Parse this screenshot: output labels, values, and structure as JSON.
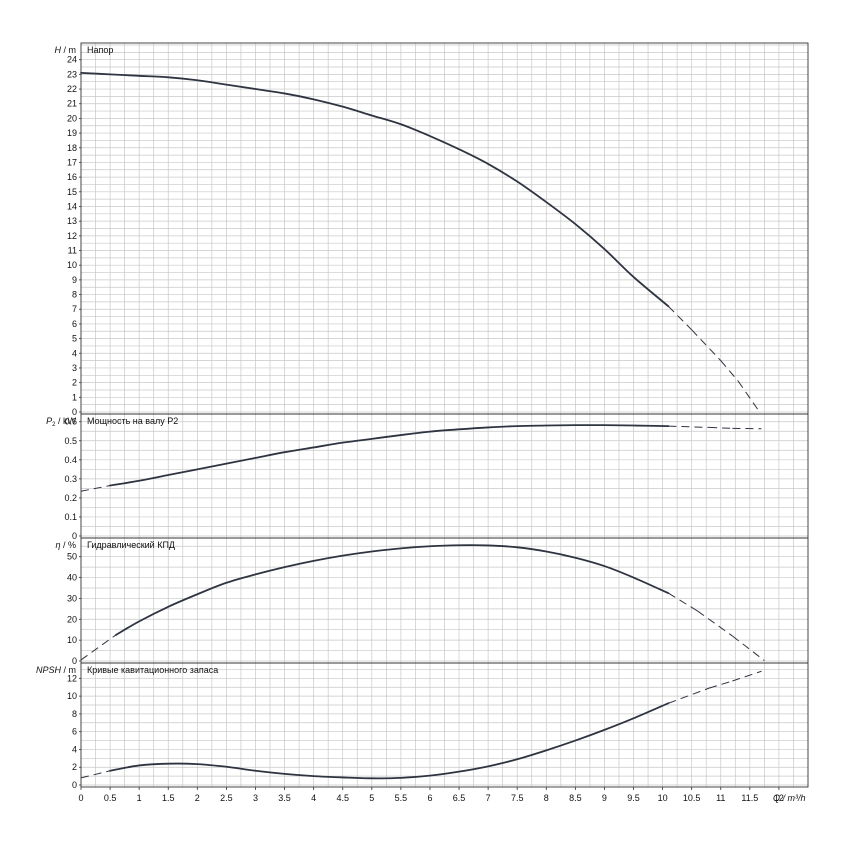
{
  "chart_data": {
    "type": "line",
    "x": {
      "ticks": [
        0,
        0.5,
        1,
        1.5,
        2,
        2.5,
        3,
        3.5,
        4,
        4.5,
        5,
        5.5,
        6,
        6.5,
        7,
        7.5,
        8,
        8.5,
        9,
        9.5,
        10,
        10.5,
        11,
        11.5,
        12
      ],
      "label": "Q / m³/h",
      "lim": [
        0,
        12.5
      ]
    },
    "grid": true,
    "panels": [
      {
        "id": "head",
        "ylabel_sym": "H",
        "ylabel_unit": "/ m",
        "title": "Напор",
        "ylim": [
          0,
          25
        ],
        "yticks": [
          0,
          1,
          2,
          3,
          4,
          5,
          6,
          7,
          8,
          9,
          10,
          11,
          12,
          13,
          14,
          15,
          16,
          17,
          18,
          19,
          20,
          21,
          22,
          23,
          24
        ],
        "ytick_labels": [
          "0",
          "1",
          "2",
          "3",
          "4",
          "5",
          "6",
          "7",
          "8",
          "9",
          "10",
          "11",
          "12",
          "13",
          "14",
          "15",
          "16",
          "17",
          "18",
          "19",
          "20",
          "21",
          "22",
          "23",
          "24"
        ],
        "curve": [
          [
            0,
            23.1
          ],
          [
            0.5,
            23.0
          ],
          [
            1,
            22.9
          ],
          [
            1.5,
            22.8
          ],
          [
            2,
            22.6
          ],
          [
            2.5,
            22.3
          ],
          [
            3,
            22.0
          ],
          [
            3.5,
            21.7
          ],
          [
            4,
            21.3
          ],
          [
            4.5,
            20.8
          ],
          [
            5,
            20.2
          ],
          [
            5.5,
            19.6
          ],
          [
            6,
            18.8
          ],
          [
            6.5,
            17.9
          ],
          [
            7,
            16.9
          ],
          [
            7.5,
            15.7
          ],
          [
            8,
            14.3
          ],
          [
            8.5,
            12.8
          ],
          [
            9,
            11.1
          ],
          [
            9.5,
            9.2
          ],
          [
            10.1,
            7.2
          ]
        ],
        "dashed": [
          [
            10.1,
            7.2
          ],
          [
            10.5,
            5.6
          ],
          [
            11,
            3.5
          ],
          [
            11.3,
            2.1
          ],
          [
            11.65,
            0.1
          ]
        ]
      },
      {
        "id": "power",
        "ylabel_sym": "P",
        "ylabel_sub": "2",
        "ylabel_unit": "/ kW",
        "title": "Мощность на валу P2",
        "ylim": [
          0,
          0.63
        ],
        "yticks": [
          0,
          0.1,
          0.2,
          0.3,
          0.4,
          0.5,
          0.6
        ],
        "ytick_labels": [
          "0",
          "0.1",
          "0.2",
          "0.3",
          "0.4",
          "0.5",
          "0.6"
        ],
        "curve": [
          [
            0.5,
            0.265
          ],
          [
            1,
            0.29
          ],
          [
            1.5,
            0.32
          ],
          [
            2,
            0.35
          ],
          [
            2.5,
            0.38
          ],
          [
            3,
            0.41
          ],
          [
            3.5,
            0.44
          ],
          [
            4,
            0.465
          ],
          [
            4.5,
            0.49
          ],
          [
            5,
            0.51
          ],
          [
            5.5,
            0.53
          ],
          [
            6,
            0.548
          ],
          [
            6.5,
            0.56
          ],
          [
            7,
            0.57
          ],
          [
            7.5,
            0.577
          ],
          [
            8,
            0.58
          ],
          [
            8.5,
            0.582
          ],
          [
            9,
            0.582
          ],
          [
            9.5,
            0.58
          ],
          [
            10.1,
            0.577
          ]
        ],
        "dashed": [
          [
            0,
            0.235
          ],
          [
            0.5,
            0.265
          ],
          [
            10.1,
            0.577
          ],
          [
            10.8,
            0.57
          ],
          [
            11.2,
            0.565
          ],
          [
            11.7,
            0.563
          ]
        ]
      },
      {
        "id": "efficiency",
        "ylabel_sym": "η",
        "ylabel_unit": "/ %",
        "title": "Гидравлический КПД",
        "ylim": [
          0,
          58
        ],
        "yticks": [
          0,
          10,
          20,
          30,
          40,
          50
        ],
        "ytick_labels": [
          "0",
          "10",
          "20",
          "30",
          "40",
          "50"
        ],
        "curve": [
          [
            0.6,
            12.5
          ],
          [
            1,
            19
          ],
          [
            1.5,
            26
          ],
          [
            2,
            32
          ],
          [
            2.5,
            37.5
          ],
          [
            3,
            41.5
          ],
          [
            3.5,
            45
          ],
          [
            4,
            48
          ],
          [
            4.5,
            50.5
          ],
          [
            5,
            52.5
          ],
          [
            5.5,
            54
          ],
          [
            6,
            55
          ],
          [
            6.5,
            55.5
          ],
          [
            7,
            55.4
          ],
          [
            7.5,
            54.5
          ],
          [
            8,
            52.5
          ],
          [
            8.5,
            49.5
          ],
          [
            9,
            45.5
          ],
          [
            9.5,
            40
          ],
          [
            10.1,
            32.5
          ]
        ],
        "dashed": [
          [
            0,
            0.5
          ],
          [
            0.6,
            12.5
          ],
          [
            10.1,
            32.5
          ],
          [
            10.6,
            24
          ],
          [
            11.2,
            12
          ],
          [
            11.75,
            0.2
          ]
        ]
      },
      {
        "id": "npsh",
        "ylabel_sym": "NPSH",
        "ylabel_unit": "/ m",
        "title": "Кривые кавитационного запаса",
        "ylim": [
          0,
          13.5
        ],
        "yticks": [
          0,
          2,
          4,
          6,
          8,
          10,
          12
        ],
        "ytick_labels": [
          "0",
          "2",
          "4",
          "6",
          "8",
          "10",
          "12"
        ],
        "curve": [
          [
            0.5,
            1.6
          ],
          [
            1,
            2.2
          ],
          [
            1.5,
            2.4
          ],
          [
            2,
            2.35
          ],
          [
            2.5,
            2.05
          ],
          [
            3,
            1.6
          ],
          [
            3.5,
            1.25
          ],
          [
            4,
            1.0
          ],
          [
            4.5,
            0.85
          ],
          [
            5,
            0.75
          ],
          [
            5.5,
            0.8
          ],
          [
            6,
            1.05
          ],
          [
            6.5,
            1.5
          ],
          [
            7,
            2.1
          ],
          [
            7.5,
            2.9
          ],
          [
            8,
            3.9
          ],
          [
            8.5,
            5.0
          ],
          [
            9,
            6.2
          ],
          [
            9.5,
            7.5
          ],
          [
            10.1,
            9.2
          ]
        ],
        "dashed": [
          [
            0,
            0.8
          ],
          [
            0.5,
            1.6
          ],
          [
            10.1,
            9.2
          ],
          [
            10.8,
            10.9
          ],
          [
            11.2,
            11.7
          ],
          [
            11.7,
            12.8
          ]
        ]
      }
    ]
  }
}
